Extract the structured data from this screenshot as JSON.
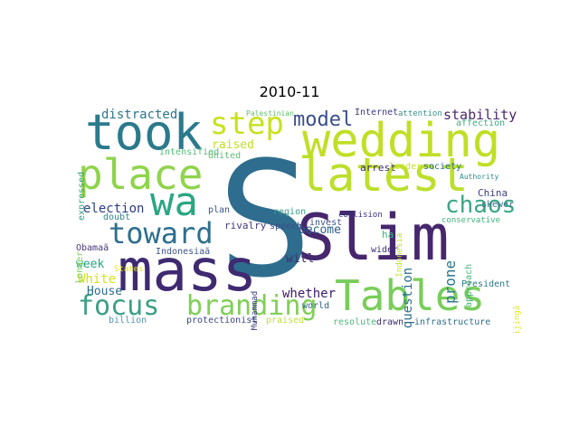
{
  "title": "2010-11",
  "words": [
    {
      "text": "Slim",
      "color": "#46276d",
      "orient": "h"
    },
    {
      "text": "S",
      "color": "#2f6d8e",
      "orient": "h"
    },
    {
      "text": "mass",
      "color": "#3f2a72",
      "orient": "h"
    },
    {
      "text": "Tables",
      "color": "#78cd5a",
      "orient": "h"
    },
    {
      "text": "wedding",
      "color": "#c0df26",
      "orient": "h"
    },
    {
      "text": "latest",
      "color": "#bcdf2c",
      "orient": "h"
    },
    {
      "text": "place",
      "color": "#8fd44b",
      "orient": "h"
    },
    {
      "text": "took",
      "color": "#2a7a8c",
      "orient": "h"
    },
    {
      "text": "wa",
      "color": "#2aa683",
      "orient": "h"
    },
    {
      "text": "step",
      "color": "#c7e21f",
      "orient": "h"
    },
    {
      "text": "toward",
      "color": "#2d6f8e",
      "orient": "h"
    },
    {
      "text": "focus",
      "color": "#3b9f86",
      "orient": "h"
    },
    {
      "text": "branding",
      "color": "#80cf56",
      "orient": "h"
    },
    {
      "text": "chaos",
      "color": "#3aa684",
      "orient": "h"
    },
    {
      "text": "model",
      "color": "#3a4e8a",
      "orient": "h"
    },
    {
      "text": "stability",
      "color": "#4c266d",
      "orient": "h"
    },
    {
      "text": "election",
      "color": "#2c3c80",
      "orient": "h"
    },
    {
      "text": "whether",
      "color": "#3b1c6b",
      "orient": "h"
    },
    {
      "text": "become",
      "color": "#2a5d8b",
      "orient": "h"
    },
    {
      "text": "will",
      "color": "#3c2e74",
      "orient": "h"
    },
    {
      "text": "distracted",
      "color": "#2c758d",
      "orient": "h"
    },
    {
      "text": "raised",
      "color": "#c2e027",
      "orient": "h"
    },
    {
      "text": "intensified",
      "color": "#56b97a",
      "orient": "h"
    },
    {
      "text": "United",
      "color": "#60bc74",
      "orient": "h"
    },
    {
      "text": "affection",
      "color": "#3fad80",
      "orient": "h"
    },
    {
      "text": "question",
      "color": "#2c6e8d",
      "orient": "v"
    },
    {
      "text": "prone",
      "color": "#2a788e",
      "orient": "v"
    },
    {
      "text": "approach",
      "color": "#4bb57c",
      "orient": "v"
    },
    {
      "text": "White",
      "color": "#d2e31b",
      "orient": "h"
    },
    {
      "text": "week",
      "color": "#23a884",
      "orient": "h"
    },
    {
      "text": "House",
      "color": "#2d6d8e",
      "orient": "h"
    },
    {
      "text": "Obamaã",
      "color": "#4a357a",
      "orient": "h"
    },
    {
      "text": "Indonesiaã",
      "color": "#3d548a",
      "orient": "h"
    },
    {
      "text": "longer",
      "color": "#7acf59",
      "orient": "v"
    },
    {
      "text": "expressed",
      "color": "#3a9e87",
      "orient": "v"
    },
    {
      "text": "rivalry",
      "color": "#44367c",
      "orient": "h"
    },
    {
      "text": "plan",
      "color": "#3a548b",
      "orient": "h"
    },
    {
      "text": "doubt",
      "color": "#30868d",
      "orient": "h"
    },
    {
      "text": "region",
      "color": "#38a185",
      "orient": "h"
    },
    {
      "text": "speech",
      "color": "#3b4c88",
      "orient": "h"
    },
    {
      "text": "arrest",
      "color": "#3a2a6e",
      "orient": "h"
    },
    {
      "text": "leader",
      "color": "#c7e22a",
      "orient": "h"
    },
    {
      "text": "society",
      "color": "#2a6f8e",
      "orient": "h"
    },
    {
      "text": "Authority",
      "color": "#2d8a8c",
      "orient": "h"
    },
    {
      "text": "China",
      "color": "#3c3f82",
      "orient": "h"
    },
    {
      "text": "skewer",
      "color": "#3a6f8e",
      "orient": "h"
    },
    {
      "text": "conservative",
      "color": "#3fb180",
      "orient": "h"
    },
    {
      "text": "ha",
      "color": "#3bb67d",
      "orient": "h"
    },
    {
      "text": "Indonesia",
      "color": "#c1df28",
      "orient": "v"
    },
    {
      "text": "wider",
      "color": "#3a2e74",
      "orient": "h"
    },
    {
      "text": "invest",
      "color": "#3d568b",
      "orient": "h"
    },
    {
      "text": "collision",
      "color": "#36337b",
      "orient": "h"
    },
    {
      "text": "Muhammad",
      "color": "#3a3779",
      "orient": "v"
    },
    {
      "text": "States",
      "color": "#e1e61e",
      "orient": "h"
    },
    {
      "text": "billion",
      "color": "#4e92b4",
      "orient": "h"
    },
    {
      "text": "protectionist",
      "color": "#3d4784",
      "orient": "h"
    },
    {
      "text": "praised",
      "color": "#bfdf3d",
      "orient": "h"
    },
    {
      "text": "world",
      "color": "#2e5f8d",
      "orient": "h"
    },
    {
      "text": "resolute",
      "color": "#4fb77a",
      "orient": "h"
    },
    {
      "text": "drawn",
      "color": "#3c2d70",
      "orient": "h"
    },
    {
      "text": "infrastructure",
      "color": "#2c6e8e",
      "orient": "h"
    },
    {
      "text": "President",
      "color": "#2e7b8e",
      "orient": "h"
    },
    {
      "text": "Beijingã",
      "color": "#e6e720",
      "orient": "v"
    },
    {
      "text": "Palestinian",
      "color": "#62c06e",
      "orient": "h"
    },
    {
      "text": "Internet",
      "color": "#3b3b81",
      "orient": "h"
    },
    {
      "text": "attention",
      "color": "#3a8e8c",
      "orient": "h"
    }
  ]
}
